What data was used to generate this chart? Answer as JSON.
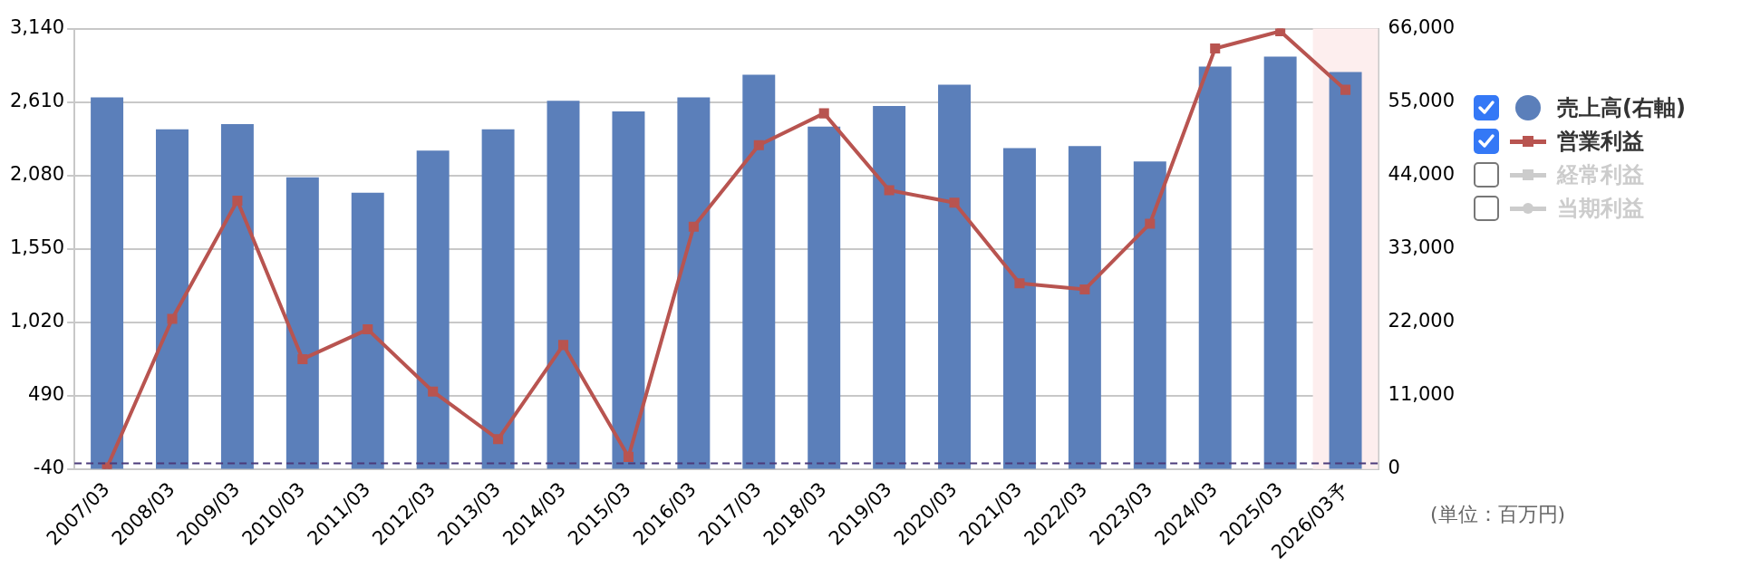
{
  "chart_data": {
    "type": "bar",
    "categories": [
      "2007/03",
      "2008/03",
      "2009/03",
      "2010/03",
      "2011/03",
      "2012/03",
      "2013/03",
      "2014/03",
      "2015/03",
      "2016/03",
      "2017/03",
      "2018/03",
      "2019/03",
      "2020/03",
      "2021/03",
      "2022/03",
      "2023/03",
      "2024/03",
      "2025/03",
      "2026/03予"
    ],
    "series": [
      {
        "name": "売上高(右軸)",
        "axis": "y2",
        "color": "#5b7fba",
        "values": [
          55700,
          50900,
          51700,
          43700,
          41400,
          47700,
          50900,
          55200,
          53600,
          55700,
          59100,
          51300,
          54400,
          57600,
          48100,
          48400,
          46100,
          60300,
          61800,
          59500
        ]
      },
      {
        "name": "営業利益",
        "type": "line",
        "marker": "square",
        "color": "#b85450",
        "values": [
          -30,
          1044,
          1898,
          753,
          968,
          519,
          175,
          855,
          47,
          1709,
          2298,
          2528,
          1973,
          1883,
          1301,
          1256,
          1731,
          2997,
          3121,
          2698
        ]
      },
      {
        "name": "経常利益",
        "type": "line",
        "marker": "triangle",
        "color": "#cccccc",
        "values": [
          null,
          null,
          null,
          null,
          null,
          null,
          null,
          null,
          null,
          null,
          null,
          null,
          null,
          null,
          null,
          null,
          null,
          null,
          null,
          null
        ]
      },
      {
        "name": "当期利益",
        "type": "line",
        "marker": "circle",
        "color": "#cccccc",
        "values": [
          null,
          null,
          null,
          null,
          null,
          null,
          null,
          null,
          null,
          null,
          null,
          null,
          null,
          null,
          null,
          null,
          null,
          null,
          null,
          null
        ]
      }
    ],
    "ylim": [
      -40,
      3140
    ],
    "yticks": [
      -40,
      {
        "value": 490,
        "label": "490"
      },
      {
        "value": 1020,
        "label": "1,020"
      },
      {
        "value": 1550,
        "label": "1,550"
      },
      {
        "value": 2080,
        "label": "2,080"
      },
      {
        "value": 2610,
        "label": "2,610"
      },
      {
        "value": 3140,
        "label": "3,140"
      }
    ],
    "y2lim": [
      0,
      66000
    ],
    "y2ticks": [
      0,
      {
        "value": 11000,
        "label": "11,000"
      },
      {
        "value": 22000,
        "label": "22,000"
      },
      {
        "value": 33000,
        "label": "33,000"
      },
      {
        "value": 44000,
        "label": "44,000"
      },
      {
        "value": 55000,
        "label": "55,000"
      },
      {
        "value": 66000,
        "label": "66,000"
      }
    ],
    "ref_lines": [
      {
        "axis": "y",
        "value": 0,
        "color": "#4b3b7a",
        "line_style": "dashed"
      }
    ],
    "bands": [
      {
        "axis": "x",
        "from": "2026/03予",
        "to": "2026/03予",
        "color": "#fdeeee"
      }
    ],
    "grid": "y",
    "legend": "right",
    "annotations": [
      "(単位：百万円)"
    ]
  }
}
